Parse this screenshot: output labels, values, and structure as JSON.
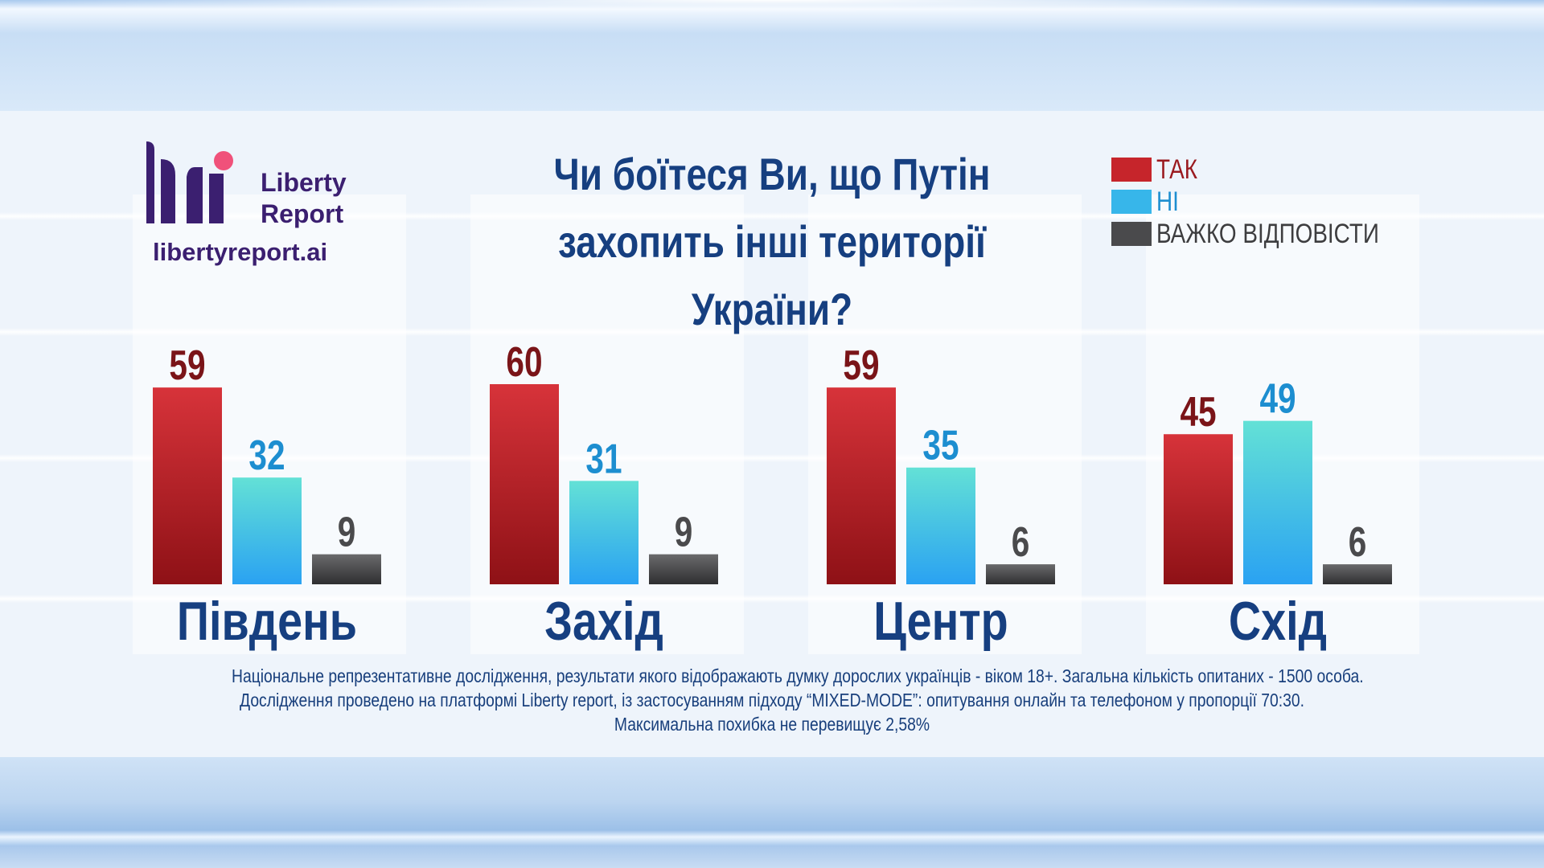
{
  "brand": {
    "name": "Liberty\nReport",
    "url": "libertyreport.ai",
    "colors": {
      "dark": "#3b1f70",
      "accent": "#f0517a"
    }
  },
  "legend": [
    {
      "label": "ТАК",
      "color": "#c6252b"
    },
    {
      "label": "НІ",
      "color": "#37b6ea"
    },
    {
      "label": "ВАЖКО ВІДПОВІСТИ",
      "color": "#4a4a4c"
    }
  ],
  "footnote": [
    "Національне репрезентативне дослідження, результати якого відображають думку дорослих українців - віком 18+. Загальна кількість опитаних - 1500 особа.",
    "Дослідження проведено на платформі Liberty report, із застосуванням підходу “MIXED-MODE”: опитування онлайн та телефоном у пропорції 70:30.",
    "Максимальна похибка не перевищує 2,58%"
  ],
  "chart_data": {
    "type": "bar",
    "title": "Чи боїтеся Ви, що Путін захопить інші території України?",
    "categories": [
      "Південь",
      "Захід",
      "Центр",
      "Схід"
    ],
    "series": [
      {
        "name": "ТАК",
        "values": [
          59,
          60,
          59,
          45
        ],
        "color": "#c6252b",
        "label_color": "#7a1418"
      },
      {
        "name": "НІ",
        "values": [
          32,
          31,
          35,
          49
        ],
        "color": "#37b6ea",
        "label_color": "#1d8ed0"
      },
      {
        "name": "ВАЖКО ВІДПОВІСТИ",
        "values": [
          9,
          9,
          6,
          6
        ],
        "color": "#4a4a4c",
        "label_color": "#4a4a4c"
      }
    ],
    "ylim": [
      0,
      60
    ],
    "grid": false,
    "legend_position": "top-right",
    "data_labels": true
  }
}
